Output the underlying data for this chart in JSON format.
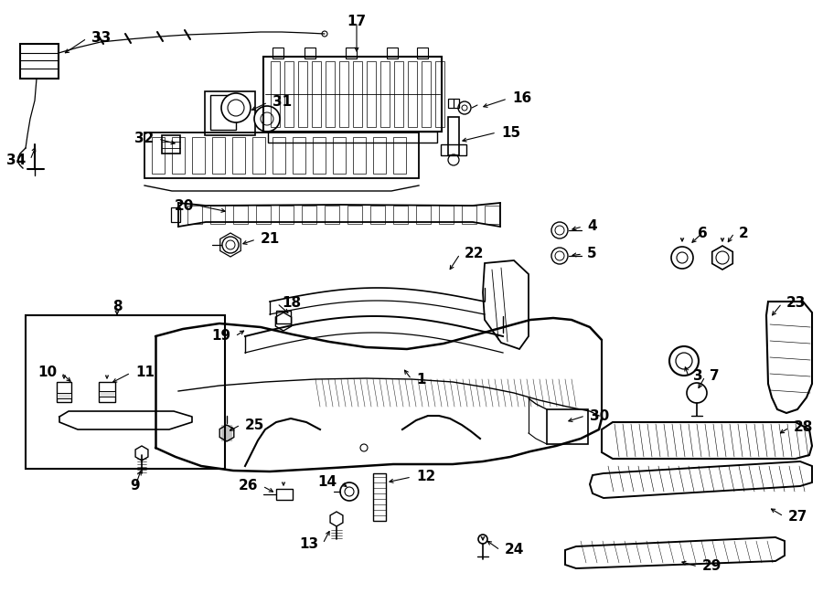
{
  "bg": "#ffffff",
  "lc": "#000000",
  "fw": 9.0,
  "fh": 6.61,
  "dpi": 100
}
